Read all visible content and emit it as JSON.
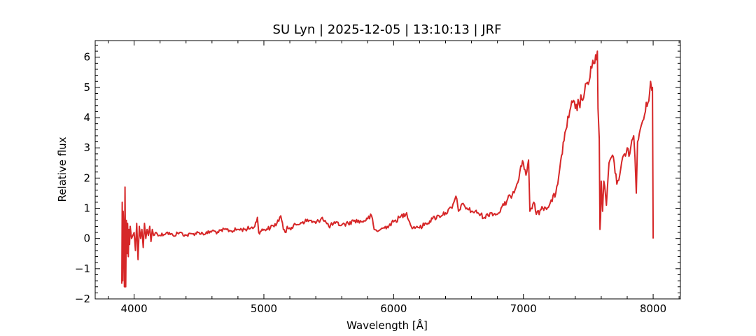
{
  "chart_data": {
    "type": "line",
    "title": "SU Lyn | 2025-12-05 | 13:10:13 | JRF",
    "xlabel": "Wavelength [Å]",
    "ylabel": "Relative flux",
    "xlim": [
      3700,
      8210
    ],
    "ylim": [
      -2,
      6.55
    ],
    "xticks": [
      4000,
      5000,
      6000,
      7000,
      8000
    ],
    "yticks": [
      -2,
      -1,
      0,
      1,
      2,
      3,
      4,
      5,
      6
    ],
    "grid": false,
    "legend": "none",
    "series": [
      {
        "color": "#d62728",
        "x": [
          3905,
          3908,
          3912,
          3915,
          3920,
          3925,
          3930,
          3935,
          3940,
          3945,
          3950,
          3955,
          3960,
          3965,
          3970,
          3980,
          3990,
          4000,
          4010,
          4020,
          4030,
          4040,
          4050,
          4060,
          4070,
          4080,
          4090,
          4100,
          4110,
          4120,
          4130,
          4140,
          4150,
          4170,
          4200,
          4250,
          4300,
          4350,
          4400,
          4450,
          4500,
          4550,
          4600,
          4650,
          4700,
          4750,
          4800,
          4850,
          4900,
          4930,
          4950,
          4960,
          4980,
          5000,
          5050,
          5100,
          5130,
          5150,
          5170,
          5180,
          5200,
          5250,
          5300,
          5350,
          5400,
          5450,
          5500,
          5550,
          5600,
          5650,
          5700,
          5750,
          5800,
          5830,
          5850,
          5870,
          5900,
          5950,
          6000,
          6050,
          6100,
          6130,
          6150,
          6180,
          6200,
          6250,
          6300,
          6350,
          6400,
          6450,
          6480,
          6500,
          6520,
          6550,
          6600,
          6650,
          6700,
          6750,
          6800,
          6850,
          6900,
          6950,
          6980,
          7000,
          7020,
          7040,
          7050,
          7060,
          7080,
          7100,
          7150,
          7200,
          7250,
          7280,
          7300,
          7320,
          7350,
          7380,
          7400,
          7450,
          7500,
          7520,
          7550,
          7570,
          7575,
          7585,
          7590,
          7595,
          7600,
          7610,
          7620,
          7640,
          7660,
          7680,
          7700,
          7720,
          7750,
          7780,
          7800,
          7820,
          7850,
          7860,
          7870,
          7880,
          7900,
          7920,
          7940,
          7960,
          7980,
          7990,
          7995,
          8000
        ],
        "y": [
          -1.5,
          1.2,
          -1.4,
          0.9,
          0.3,
          -1.6,
          1.7,
          -1.6,
          0.6,
          -0.5,
          0.5,
          -0.6,
          0.3,
          -0.2,
          0.4,
          0.0,
          0.1,
          0.2,
          -0.4,
          0.5,
          -0.7,
          0.4,
          0.0,
          0.3,
          -0.3,
          0.5,
          0.0,
          0.3,
          0.1,
          0.4,
          -0.1,
          0.3,
          0.1,
          0.2,
          0.1,
          0.2,
          0.1,
          0.2,
          0.1,
          0.15,
          0.2,
          0.15,
          0.25,
          0.2,
          0.3,
          0.25,
          0.3,
          0.3,
          0.35,
          0.4,
          0.7,
          0.2,
          0.25,
          0.3,
          0.35,
          0.5,
          0.75,
          0.3,
          0.2,
          0.4,
          0.35,
          0.45,
          0.55,
          0.6,
          0.5,
          0.7,
          0.4,
          0.5,
          0.45,
          0.5,
          0.6,
          0.55,
          0.65,
          0.75,
          0.3,
          0.25,
          0.3,
          0.4,
          0.55,
          0.7,
          0.85,
          0.45,
          0.35,
          0.4,
          0.35,
          0.5,
          0.65,
          0.75,
          0.85,
          1.0,
          1.4,
          0.9,
          1.1,
          1.05,
          0.9,
          0.85,
          0.7,
          0.85,
          0.8,
          1.1,
          1.4,
          1.8,
          2.4,
          2.5,
          2.1,
          2.6,
          0.9,
          1.0,
          1.2,
          0.8,
          1.0,
          1.1,
          1.5,
          2.3,
          2.8,
          3.5,
          4.0,
          4.5,
          4.3,
          4.6,
          5.1,
          5.7,
          5.8,
          6.2,
          4.3,
          3.3,
          0.3,
          0.7,
          1.9,
          0.9,
          1.9,
          1.1,
          2.5,
          2.7,
          2.5,
          1.8,
          2.3,
          2.8,
          3.0,
          2.8,
          3.4,
          2.7,
          1.5,
          3.2,
          3.6,
          3.9,
          4.2,
          4.5,
          5.2,
          4.9,
          5.0,
          0.0
        ]
      }
    ]
  }
}
